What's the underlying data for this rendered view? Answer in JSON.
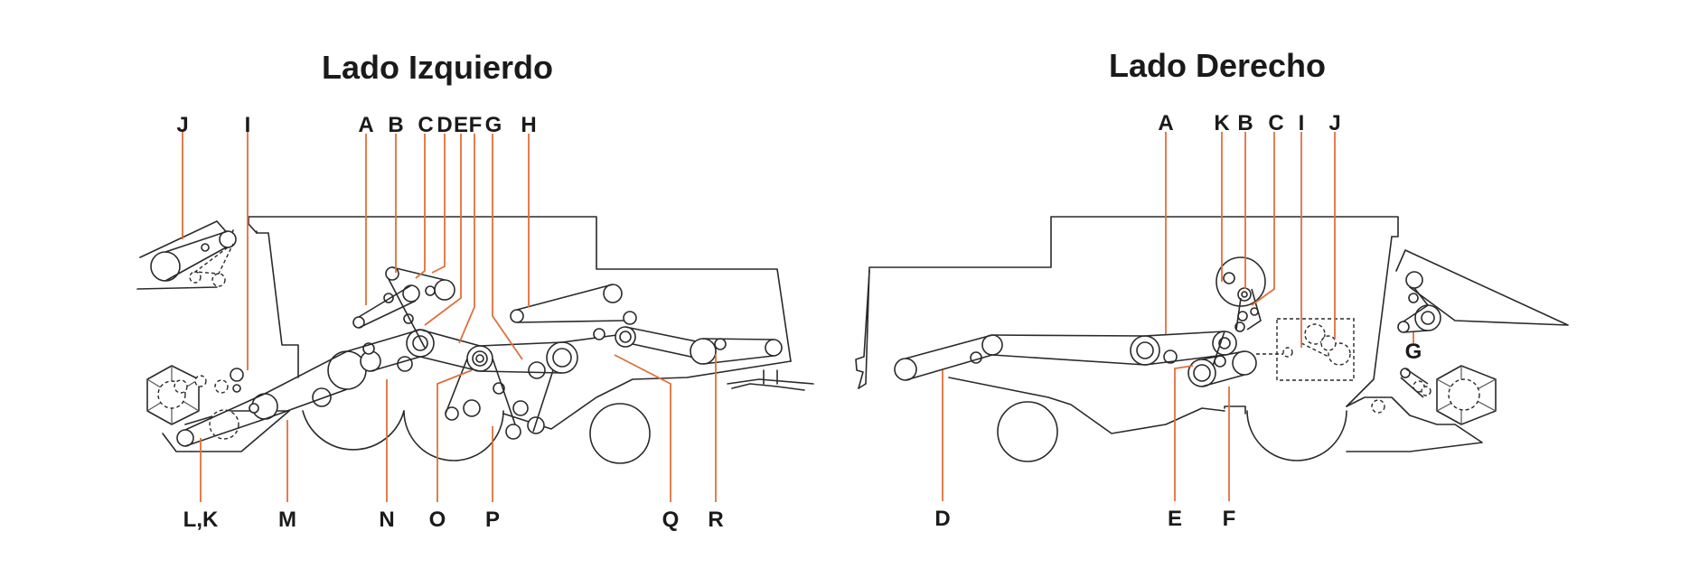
{
  "colors": {
    "leader": "#e0703a",
    "outline": "#2a2a2a",
    "text": "#1a1a1a"
  },
  "panels": {
    "left": {
      "title": "Lado Izquierdo",
      "labels": {
        "J": "J",
        "I": "I",
        "A": "A",
        "B": "B",
        "C": "C",
        "D": "D",
        "E": "E",
        "F": "F",
        "G": "G",
        "H": "H",
        "LK": "L,K",
        "M": "M",
        "N": "N",
        "O": "O",
        "P": "P",
        "Q": "Q",
        "R": "R"
      }
    },
    "right": {
      "title": "Lado Derecho",
      "labels": {
        "A": "A",
        "K": "K",
        "B": "B",
        "C": "C",
        "I": "I",
        "J": "J",
        "G": "G",
        "D": "D",
        "E": "E",
        "F": "F"
      }
    }
  }
}
